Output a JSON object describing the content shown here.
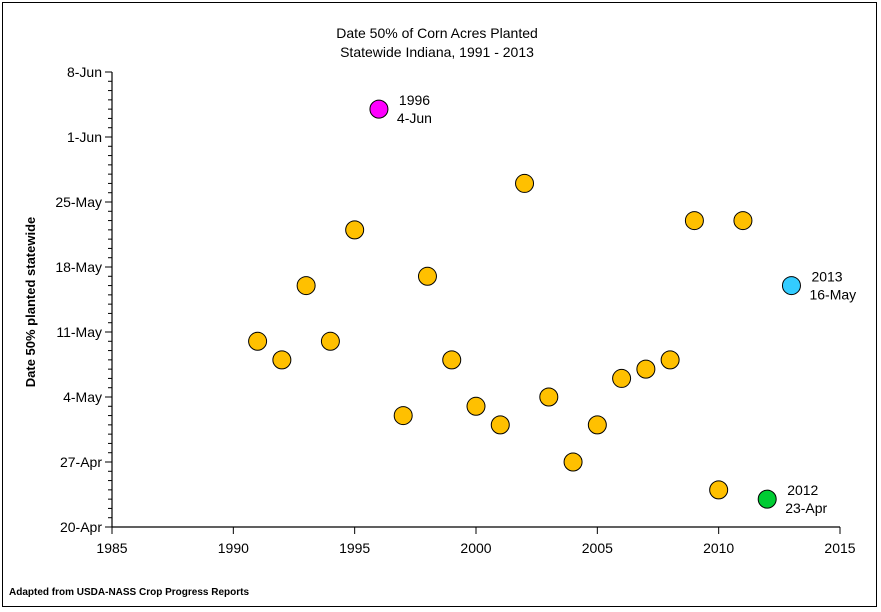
{
  "chart_data": {
    "type": "scatter",
    "title": "Date 50% of Corn Acres Planted",
    "subtitle": "Statewide Indiana, 1991 - 2013",
    "xlabel": "",
    "ylabel": "Date 50% planted statewide",
    "source": "Adapted from USDA-NASS Crop Progress Reports",
    "xlim": [
      1985,
      2015
    ],
    "x_ticks": [
      "1985",
      "1990",
      "1995",
      "2000",
      "2005",
      "2010",
      "2015"
    ],
    "ylim": [
      "20-Apr",
      "8-Jun"
    ],
    "y_ticks": [
      "20-Apr",
      "27-Apr",
      "4-May",
      "11-May",
      "18-May",
      "25-May",
      "1-Jun",
      "8-Jun"
    ],
    "grid": false,
    "colors": {
      "default_point": "#FFC000",
      "highlight_1996": "#FF00FF",
      "highlight_2012": "#00CC33",
      "highlight_2013": "#33CCFF"
    },
    "points": [
      {
        "x": 1991,
        "y": "10-May"
      },
      {
        "x": 1992,
        "y": "8-May"
      },
      {
        "x": 1993,
        "y": "16-May"
      },
      {
        "x": 1994,
        "y": "10-May"
      },
      {
        "x": 1995,
        "y": "22-May"
      },
      {
        "x": 1996,
        "y": "4-Jun",
        "color": "#FF00FF"
      },
      {
        "x": 1997,
        "y": "2-May"
      },
      {
        "x": 1998,
        "y": "17-May"
      },
      {
        "x": 1999,
        "y": "8-May"
      },
      {
        "x": 2000,
        "y": "3-May"
      },
      {
        "x": 2001,
        "y": "1-May"
      },
      {
        "x": 2002,
        "y": "27-May"
      },
      {
        "x": 2003,
        "y": "4-May"
      },
      {
        "x": 2004,
        "y": "27-Apr"
      },
      {
        "x": 2005,
        "y": "1-May"
      },
      {
        "x": 2006,
        "y": "6-May"
      },
      {
        "x": 2007,
        "y": "7-May"
      },
      {
        "x": 2008,
        "y": "8-May"
      },
      {
        "x": 2009,
        "y": "23-May"
      },
      {
        "x": 2010,
        "y": "24-Apr"
      },
      {
        "x": 2011,
        "y": "23-May"
      },
      {
        "x": 2012,
        "y": "23-Apr",
        "color": "#00CC33"
      },
      {
        "x": 2013,
        "y": "16-May",
        "color": "#33CCFF"
      }
    ],
    "annotations": [
      {
        "x": 1996,
        "lines": [
          "1996",
          "4-Jun"
        ]
      },
      {
        "x": 2012,
        "lines": [
          "2012",
          "23-Apr"
        ]
      },
      {
        "x": 2013,
        "lines": [
          "2013",
          "16-May"
        ]
      }
    ]
  }
}
